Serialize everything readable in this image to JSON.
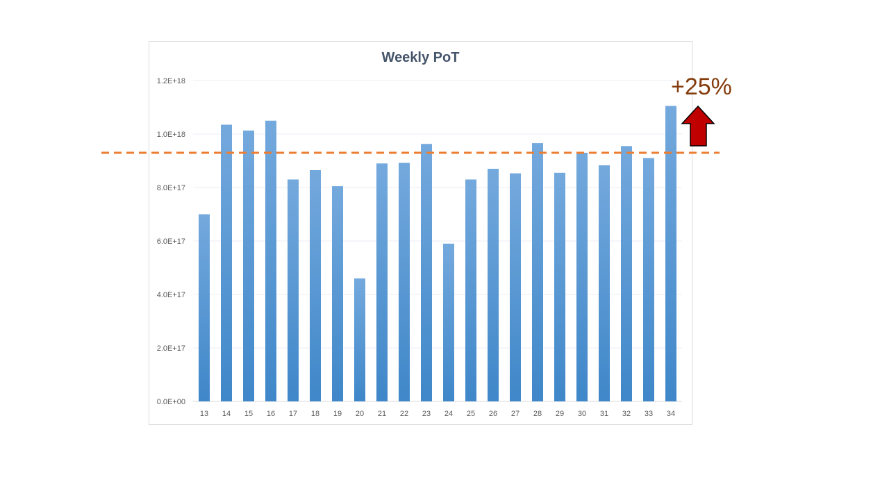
{
  "chart_data": {
    "type": "bar",
    "title": "Weekly PoT",
    "xlabel": "",
    "ylabel": "",
    "categories": [
      "13",
      "14",
      "15",
      "16",
      "17",
      "18",
      "19",
      "20",
      "21",
      "22",
      "23",
      "24",
      "25",
      "26",
      "27",
      "28",
      "29",
      "30",
      "31",
      "32",
      "33",
      "34"
    ],
    "values": [
      7e+17,
      1.035e+18,
      1.013e+18,
      1.05e+18,
      8.3e+17,
      8.65e+17,
      8.05e+17,
      4.6e+17,
      8.9e+17,
      8.92e+17,
      9.63e+17,
      5.9e+17,
      8.3e+17,
      8.7e+17,
      8.53e+17,
      9.66e+17,
      8.55e+17,
      9.3e+17,
      8.83e+17,
      9.55e+17,
      9.1e+17,
      1.105e+18
    ],
    "ylim": [
      0,
      1.2e+18
    ],
    "yticks": [
      0,
      2e+17,
      4e+17,
      6e+17,
      8e+17,
      1e+18,
      1.2e+18
    ],
    "ytick_labels": [
      "0.0E+00",
      "2.0E+17",
      "4.0E+17",
      "6.0E+17",
      "8.0E+17",
      "1.0E+18",
      "1.2E+18"
    ],
    "grid": true,
    "bar_color": "#5b9bd5",
    "reference_line": {
      "value": 9.3e+17,
      "style": "dashed",
      "color": "#ed7d31"
    },
    "annotation": {
      "text": "+25%",
      "color": "#843c0c",
      "arrow_color": "#c00000",
      "arrow_direction": "up"
    }
  }
}
